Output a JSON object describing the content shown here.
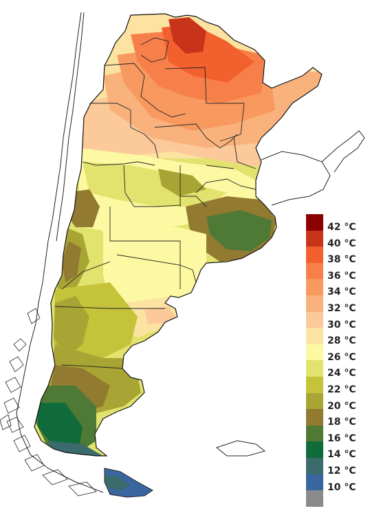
{
  "legend": {
    "items": [
      {
        "label": "42 °C",
        "color": "#8b0000"
      },
      {
        "label": "40 °C",
        "color": "#c8341a"
      },
      {
        "label": "38 °C",
        "color": "#f2602e"
      },
      {
        "label": "36 °C",
        "color": "#f7804a"
      },
      {
        "label": "34 °C",
        "color": "#f8995f"
      },
      {
        "label": "32 °C",
        "color": "#f9b27c"
      },
      {
        "label": "30 °C",
        "color": "#fbc99a"
      },
      {
        "label": "28 °C",
        "color": "#fde3a2"
      },
      {
        "label": "26 °C",
        "color": "#fdf9a2"
      },
      {
        "label": "24 °C",
        "color": "#e2e26e"
      },
      {
        "label": "22 °C",
        "color": "#c4c33a"
      },
      {
        "label": "20 °C",
        "color": "#a9a534"
      },
      {
        "label": "18 °C",
        "color": "#927a30"
      },
      {
        "label": "16 °C",
        "color": "#4f7a35"
      },
      {
        "label": "14 °C",
        "color": "#0f6b3a"
      },
      {
        "label": "12 °C",
        "color": "#3b6b6a"
      },
      {
        "label": "10 °C",
        "color": "#3a66a0"
      },
      {
        "label": "",
        "color": "#8a8a8a"
      }
    ]
  }
}
